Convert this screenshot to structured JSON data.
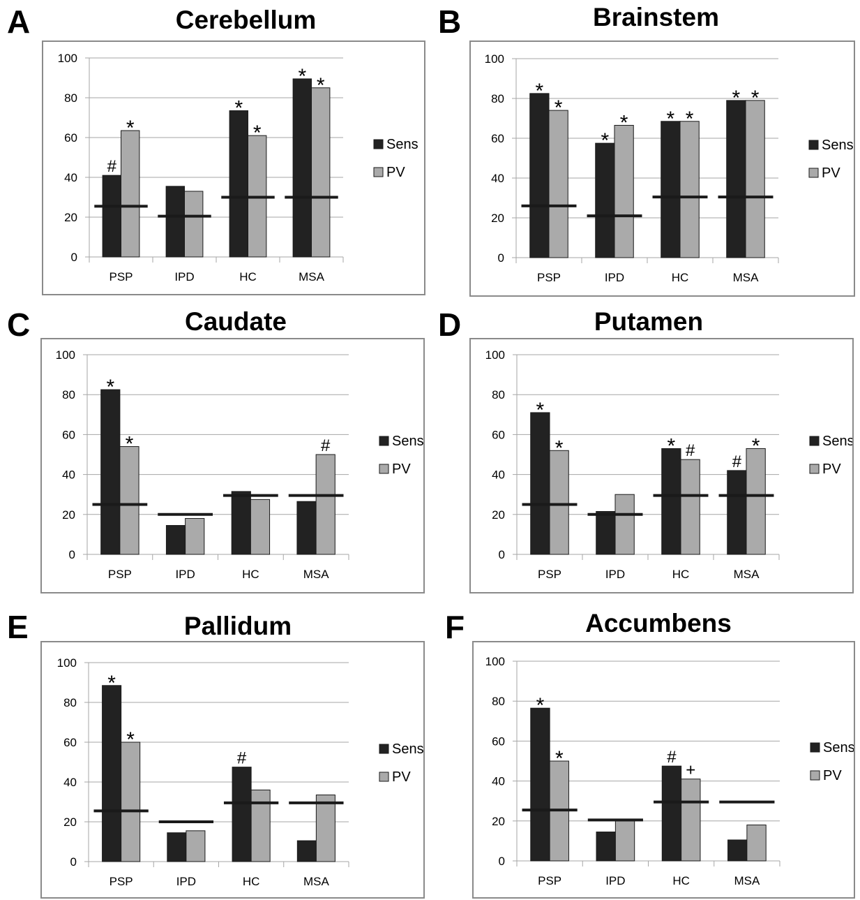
{
  "colors": {
    "sens": "#222222",
    "pv": "#aaaaaa",
    "grid": "#a6a6a6",
    "frame": "#8a8a8a"
  },
  "legend": {
    "sens": "Sens",
    "pv": "PV"
  },
  "chart_data": [
    {
      "panel": "A",
      "title": "Cerebellum",
      "type": "bar",
      "categories": [
        "PSP",
        "IPD",
        "HC",
        "MSA"
      ],
      "ylim": [
        0,
        100
      ],
      "yticks": [
        0,
        20,
        40,
        60,
        80,
        100
      ],
      "grid": true,
      "legend_position": "right",
      "series": [
        {
          "name": "Sens",
          "values": [
            41,
            35.5,
            73.5,
            89.5
          ]
        },
        {
          "name": "PV",
          "values": [
            63.5,
            33,
            61,
            85
          ]
        }
      ],
      "thresholds": [
        25.5,
        20.5,
        30,
        30
      ],
      "annotations": [
        [
          "#",
          "*"
        ],
        [
          "",
          ""
        ],
        [
          "*",
          "*"
        ],
        [
          "*",
          "*"
        ]
      ]
    },
    {
      "panel": "B",
      "title": "Brainstem",
      "type": "bar",
      "categories": [
        "PSP",
        "IPD",
        "HC",
        "MSA"
      ],
      "ylim": [
        0,
        100
      ],
      "yticks": [
        0,
        20,
        40,
        60,
        80,
        100
      ],
      "grid": true,
      "legend_position": "right",
      "series": [
        {
          "name": "Sens",
          "values": [
            82.5,
            57.5,
            68.5,
            79
          ]
        },
        {
          "name": "PV",
          "values": [
            74,
            66.5,
            68.5,
            79
          ]
        }
      ],
      "thresholds": [
        26,
        21,
        30.5,
        30.5
      ],
      "annotations": [
        [
          "*",
          "*"
        ],
        [
          "*",
          "*"
        ],
        [
          "*",
          "*"
        ],
        [
          "*",
          "*"
        ]
      ]
    },
    {
      "panel": "C",
      "title": "Caudate",
      "type": "bar",
      "categories": [
        "PSP",
        "IPD",
        "HC",
        "MSA"
      ],
      "ylim": [
        0,
        100
      ],
      "yticks": [
        0,
        20,
        40,
        60,
        80,
        100
      ],
      "grid": true,
      "legend_position": "right",
      "series": [
        {
          "name": "Sens",
          "values": [
            82.5,
            14.5,
            31.5,
            26.5
          ]
        },
        {
          "name": "PV",
          "values": [
            54,
            18,
            27.5,
            50
          ]
        }
      ],
      "thresholds": [
        25,
        20,
        29.5,
        29.5
      ],
      "annotations": [
        [
          "*",
          "*"
        ],
        [
          "",
          ""
        ],
        [
          "",
          ""
        ],
        [
          "",
          "#"
        ]
      ]
    },
    {
      "panel": "D",
      "title": "Putamen",
      "type": "bar",
      "categories": [
        "PSP",
        "IPD",
        "HC",
        "MSA"
      ],
      "ylim": [
        0,
        100
      ],
      "yticks": [
        0,
        20,
        40,
        60,
        80,
        100
      ],
      "grid": true,
      "legend_position": "right",
      "series": [
        {
          "name": "Sens",
          "values": [
            71,
            21.5,
            53,
            42
          ]
        },
        {
          "name": "PV",
          "values": [
            52,
            30,
            47.5,
            53
          ]
        }
      ],
      "thresholds": [
        25,
        20,
        29.5,
        29.5
      ],
      "annotations": [
        [
          "*",
          "*"
        ],
        [
          "",
          ""
        ],
        [
          "*",
          "#"
        ],
        [
          "#",
          "*"
        ]
      ]
    },
    {
      "panel": "E",
      "title": "Pallidum",
      "type": "bar",
      "categories": [
        "PSP",
        "IPD",
        "HC",
        "MSA"
      ],
      "ylim": [
        0,
        100
      ],
      "yticks": [
        0,
        20,
        40,
        60,
        80,
        100
      ],
      "grid": true,
      "legend_position": "right",
      "series": [
        {
          "name": "Sens",
          "values": [
            88.5,
            14.5,
            47.5,
            10.5
          ]
        },
        {
          "name": "PV",
          "values": [
            60,
            15.5,
            36,
            33.5
          ]
        }
      ],
      "thresholds": [
        25.5,
        20,
        29.5,
        29.5
      ],
      "annotations": [
        [
          "*",
          "*"
        ],
        [
          "",
          ""
        ],
        [
          "#",
          ""
        ],
        [
          "",
          ""
        ]
      ]
    },
    {
      "panel": "F",
      "title": "Accumbens",
      "type": "bar",
      "categories": [
        "PSP",
        "IPD",
        "HC",
        "MSA"
      ],
      "ylim": [
        0,
        100
      ],
      "yticks": [
        0,
        20,
        40,
        60,
        80,
        100
      ],
      "grid": true,
      "legend_position": "right",
      "series": [
        {
          "name": "Sens",
          "values": [
            76.5,
            14.5,
            47.5,
            10.5
          ]
        },
        {
          "name": "PV",
          "values": [
            50,
            20,
            41,
            18
          ]
        }
      ],
      "thresholds": [
        25.5,
        20.5,
        29.5,
        29.5
      ],
      "annotations": [
        [
          "*",
          "*"
        ],
        [
          "",
          ""
        ],
        [
          "#",
          "+"
        ],
        [
          "",
          ""
        ]
      ]
    }
  ]
}
